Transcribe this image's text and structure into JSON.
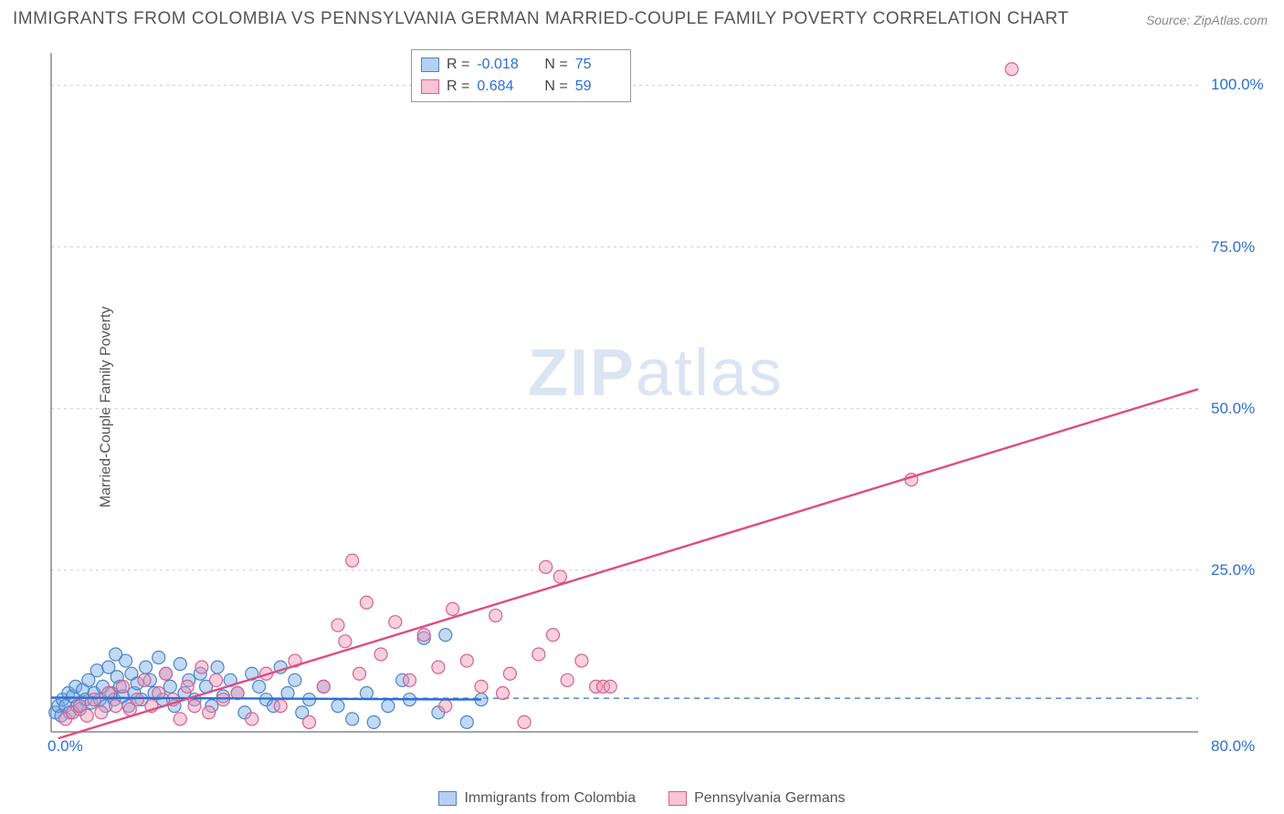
{
  "title": "IMMIGRANTS FROM COLOMBIA VS PENNSYLVANIA GERMAN MARRIED-COUPLE FAMILY POVERTY CORRELATION CHART",
  "source": "Source: ZipAtlas.com",
  "y_axis_label": "Married-Couple Family Poverty",
  "watermark": {
    "bold": "ZIP",
    "rest": "atlas"
  },
  "chart": {
    "type": "scatter",
    "xlim": [
      0,
      80
    ],
    "ylim": [
      0,
      105
    ],
    "x_ticks": [
      {
        "v": 0,
        "label": "0.0%"
      },
      {
        "v": 80,
        "label": "80.0%"
      }
    ],
    "y_ticks": [
      {
        "v": 25,
        "label": "25.0%"
      },
      {
        "v": 50,
        "label": "50.0%"
      },
      {
        "v": 75,
        "label": "75.0%"
      },
      {
        "v": 100,
        "label": "100.0%"
      }
    ],
    "grid_color": "#cccccc",
    "axis_color": "#888888",
    "background_color": "#ffffff",
    "marker_radius": 7,
    "marker_stroke_width": 1.2,
    "line_width": 2.4,
    "dashed_baseline": {
      "y": 5.2,
      "color": "#2b6fd4",
      "dash": "6 5"
    },
    "series": [
      {
        "name": "Immigrants from Colombia",
        "fill": "rgba(120,170,230,0.45)",
        "stroke": "#4a85c9",
        "line_color": "#2b6fd4",
        "R": "-0.018",
        "N": "75",
        "fit": {
          "x1": 0,
          "y1": 5.3,
          "x2": 30,
          "y2": 5.0
        },
        "points": [
          [
            0.3,
            3.0
          ],
          [
            0.5,
            4.0
          ],
          [
            0.7,
            2.5
          ],
          [
            0.8,
            5.0
          ],
          [
            1.0,
            4.0
          ],
          [
            1.2,
            6.0
          ],
          [
            1.3,
            3.0
          ],
          [
            1.5,
            5.5
          ],
          [
            1.7,
            7.0
          ],
          [
            1.8,
            4.0
          ],
          [
            2.0,
            3.5
          ],
          [
            2.2,
            6.5
          ],
          [
            2.4,
            5.0
          ],
          [
            2.6,
            8.0
          ],
          [
            2.8,
            4.5
          ],
          [
            3.0,
            6.0
          ],
          [
            3.2,
            9.5
          ],
          [
            3.4,
            5.0
          ],
          [
            3.6,
            7.0
          ],
          [
            3.8,
            4.0
          ],
          [
            4.0,
            10.0
          ],
          [
            4.2,
            6.0
          ],
          [
            4.4,
            5.0
          ],
          [
            4.6,
            8.5
          ],
          [
            4.8,
            7.0
          ],
          [
            5.0,
            5.5
          ],
          [
            5.2,
            11.0
          ],
          [
            5.4,
            4.0
          ],
          [
            5.6,
            9.0
          ],
          [
            5.8,
            6.0
          ],
          [
            6.0,
            7.5
          ],
          [
            6.3,
            5.0
          ],
          [
            6.6,
            10.0
          ],
          [
            6.9,
            8.0
          ],
          [
            7.2,
            6.0
          ],
          [
            7.5,
            11.5
          ],
          [
            7.8,
            5.0
          ],
          [
            8.0,
            9.0
          ],
          [
            8.3,
            7.0
          ],
          [
            8.6,
            4.0
          ],
          [
            9.0,
            10.5
          ],
          [
            9.3,
            6.0
          ],
          [
            9.6,
            8.0
          ],
          [
            10.0,
            5.0
          ],
          [
            10.4,
            9.0
          ],
          [
            10.8,
            7.0
          ],
          [
            11.2,
            4.0
          ],
          [
            11.6,
            10.0
          ],
          [
            12.0,
            5.5
          ],
          [
            12.5,
            8.0
          ],
          [
            13.0,
            6.0
          ],
          [
            13.5,
            3.0
          ],
          [
            14.0,
            9.0
          ],
          [
            14.5,
            7.0
          ],
          [
            15.0,
            5.0
          ],
          [
            15.5,
            4.0
          ],
          [
            16.0,
            10.0
          ],
          [
            16.5,
            6.0
          ],
          [
            17.0,
            8.0
          ],
          [
            17.5,
            3.0
          ],
          [
            18.0,
            5.0
          ],
          [
            19.0,
            7.0
          ],
          [
            20.0,
            4.0
          ],
          [
            21.0,
            2.0
          ],
          [
            22.0,
            6.0
          ],
          [
            22.5,
            1.5
          ],
          [
            23.5,
            4.0
          ],
          [
            24.5,
            8.0
          ],
          [
            25.0,
            5.0
          ],
          [
            26.0,
            14.5
          ],
          [
            27.0,
            3.0
          ],
          [
            27.5,
            15.0
          ],
          [
            29.0,
            1.5
          ],
          [
            30.0,
            5.0
          ],
          [
            4.5,
            12.0
          ]
        ]
      },
      {
        "name": "Pennsylvania Germans",
        "fill": "rgba(240,150,180,0.45)",
        "stroke": "#d95f8f",
        "line_color": "#e14b7e",
        "R": "0.684",
        "N": "59",
        "fit": {
          "x1": 0.5,
          "y1": -1.0,
          "x2": 80,
          "y2": 53.0
        },
        "points": [
          [
            1.0,
            2.0
          ],
          [
            1.5,
            3.0
          ],
          [
            2.0,
            4.0
          ],
          [
            2.5,
            2.5
          ],
          [
            3.0,
            5.0
          ],
          [
            3.5,
            3.0
          ],
          [
            4.0,
            6.0
          ],
          [
            4.5,
            4.0
          ],
          [
            5.0,
            7.0
          ],
          [
            5.5,
            3.5
          ],
          [
            6.0,
            5.0
          ],
          [
            6.5,
            8.0
          ],
          [
            7.0,
            4.0
          ],
          [
            7.5,
            6.0
          ],
          [
            8.0,
            9.0
          ],
          [
            8.5,
            5.0
          ],
          [
            9.0,
            2.0
          ],
          [
            9.5,
            7.0
          ],
          [
            10.0,
            4.0
          ],
          [
            10.5,
            10.0
          ],
          [
            11.0,
            3.0
          ],
          [
            11.5,
            8.0
          ],
          [
            12.0,
            5.0
          ],
          [
            13.0,
            6.0
          ],
          [
            14.0,
            2.0
          ],
          [
            15.0,
            9.0
          ],
          [
            16.0,
            4.0
          ],
          [
            17.0,
            11.0
          ],
          [
            18.0,
            1.5
          ],
          [
            19.0,
            7.0
          ],
          [
            20.0,
            16.5
          ],
          [
            20.5,
            14.0
          ],
          [
            21.0,
            26.5
          ],
          [
            21.5,
            9.0
          ],
          [
            22.0,
            20.0
          ],
          [
            23.0,
            12.0
          ],
          [
            24.0,
            17.0
          ],
          [
            25.0,
            8.0
          ],
          [
            26.0,
            15.0
          ],
          [
            27.0,
            10.0
          ],
          [
            28.0,
            19.0
          ],
          [
            29.0,
            11.0
          ],
          [
            30.0,
            7.0
          ],
          [
            31.0,
            18.0
          ],
          [
            32.0,
            9.0
          ],
          [
            33.0,
            1.5
          ],
          [
            34.0,
            12.0
          ],
          [
            35.0,
            15.0
          ],
          [
            36.0,
            8.0
          ],
          [
            37.0,
            11.0
          ],
          [
            38.0,
            7.0
          ],
          [
            34.5,
            25.5
          ],
          [
            35.5,
            24.0
          ],
          [
            38.5,
            7.0
          ],
          [
            39.0,
            7.0
          ],
          [
            60.0,
            39.0
          ],
          [
            67.0,
            102.5
          ],
          [
            27.5,
            4.0
          ],
          [
            31.5,
            6.0
          ]
        ]
      }
    ]
  },
  "legend": {
    "items": [
      {
        "label": "Immigrants from Colombia",
        "swatch_fill": "rgba(120,170,230,0.55)",
        "swatch_stroke": "#4a85c9"
      },
      {
        "label": "Pennsylvania Germans",
        "swatch_fill": "rgba(240,150,180,0.55)",
        "swatch_stroke": "#d95f8f"
      }
    ]
  },
  "stats_box": {
    "rows": [
      {
        "swatch_fill": "rgba(120,170,230,0.55)",
        "swatch_stroke": "#4a85c9",
        "R_label": "R =",
        "R": "-0.018",
        "N_label": "N =",
        "N": "75"
      },
      {
        "swatch_fill": "rgba(240,150,180,0.55)",
        "swatch_stroke": "#d95f8f",
        "R_label": "R =",
        "R": "0.684",
        "N_label": "N =",
        "N": "59"
      }
    ]
  }
}
